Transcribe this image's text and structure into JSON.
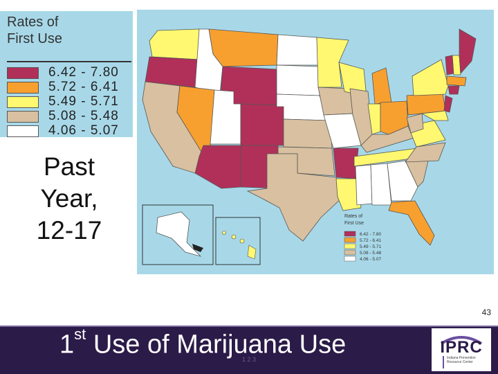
{
  "legend": {
    "title_line1": "Rates of",
    "title_line2": "First Use",
    "items": [
      {
        "range": "6.42 - 7.80",
        "color": "#b0305a"
      },
      {
        "range": "5.72 - 6.41",
        "color": "#f7a030"
      },
      {
        "range": "5.49 - 5.71",
        "color": "#fff870"
      },
      {
        "range": "5.08 - 5.48",
        "color": "#d8c0a0"
      },
      {
        "range": "4.06 - 5.07",
        "color": "#ffffff"
      }
    ]
  },
  "side_title": {
    "line1": "Past",
    "line2": "Year,",
    "line3": "12-17"
  },
  "page_number": "43",
  "footer": {
    "title_pre": "1",
    "title_sup": "st",
    "title_post": " Use of Marijuana Use",
    "tiny_text": "1 2 3"
  },
  "logo": {
    "name": "IPRC",
    "subtitle": "Indiana Prevention Resource Center"
  },
  "colors": {
    "background_water": "#a8d8e8",
    "footer_bg": "#2b1b48"
  }
}
